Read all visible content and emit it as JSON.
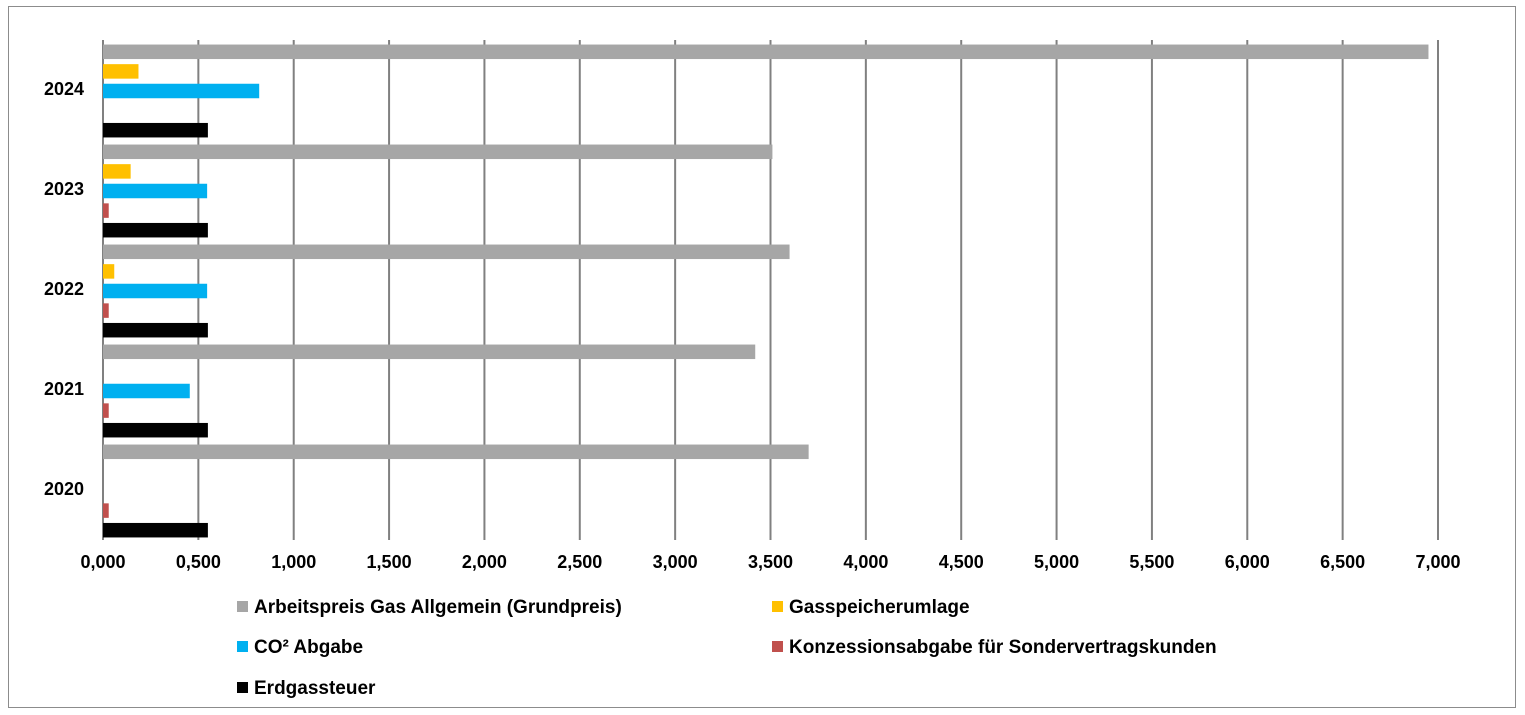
{
  "chart_data": {
    "type": "bar",
    "orientation": "horizontal",
    "categories": [
      "2020",
      "2021",
      "2022",
      "2023",
      "2024"
    ],
    "series": [
      {
        "name": "Arbeitspreis Gas Allgemein (Grundpreis)",
        "color": "#a6a6a6",
        "values": [
          3.7,
          3.42,
          3.6,
          3.51,
          6.95
        ]
      },
      {
        "name": "Gasspeicherumlage",
        "color": "#ffc000",
        "values": [
          0,
          0,
          0.059,
          0.145,
          0.186
        ]
      },
      {
        "name": "CO² Abgabe",
        "color": "#00b0f0",
        "values": [
          0,
          0.455,
          0.546,
          0.546,
          0.819
        ]
      },
      {
        "name": "Konzessionsabgabe für Sondervertragskunden",
        "color": "#c0504d",
        "values": [
          0.03,
          0.03,
          0.03,
          0.03,
          0
        ]
      },
      {
        "name": "Erdgassteuer",
        "color": "#000000",
        "values": [
          0.55,
          0.55,
          0.55,
          0.55,
          0.55
        ]
      }
    ],
    "xlim": [
      0,
      7
    ],
    "x_ticks": [
      "0,000",
      "0,500",
      "1,000",
      "1,500",
      "2,000",
      "2,500",
      "3,000",
      "3,500",
      "4,000",
      "4,500",
      "5,000",
      "5,500",
      "6,000",
      "6,500",
      "7,000"
    ],
    "grid": "vertical",
    "legend_placement": "bottom"
  }
}
